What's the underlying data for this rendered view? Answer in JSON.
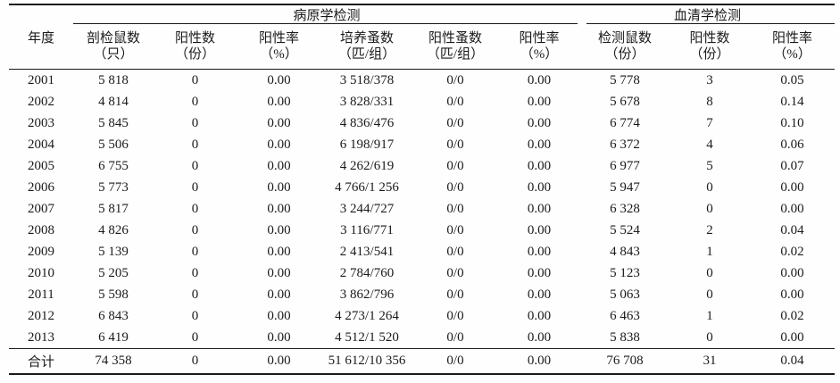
{
  "colors": {
    "background": "#ffffff",
    "rule_line": "#1a1a1a",
    "text": "#1a1a1a"
  },
  "table": {
    "year_header": "年度",
    "groups": [
      {
        "label": "病原学检测"
      },
      {
        "label": "血清学检测"
      }
    ],
    "columns": [
      {
        "name": "剖检鼠数",
        "unit": "（只）"
      },
      {
        "name": "阳性数",
        "unit": "（份）"
      },
      {
        "name": "阳性率",
        "unit": "（%）"
      },
      {
        "name": "培养蚤数",
        "unit": "（匹/组）"
      },
      {
        "name": "阳性蚤数",
        "unit": "（匹/组）"
      },
      {
        "name": "阳性率",
        "unit": "（%）"
      },
      {
        "name": "检测鼠数",
        "unit": "（份）"
      },
      {
        "name": "阳性数",
        "unit": "（份）"
      },
      {
        "name": "阳性率",
        "unit": "（%）"
      }
    ],
    "rows": [
      [
        "2001",
        "5 818",
        "0",
        "0.00",
        "3 518/378",
        "0/0",
        "0.00",
        "5 778",
        "3",
        "0.05"
      ],
      [
        "2002",
        "4 814",
        "0",
        "0.00",
        "3 828/331",
        "0/0",
        "0.00",
        "5 678",
        "8",
        "0.14"
      ],
      [
        "2003",
        "5 845",
        "0",
        "0.00",
        "4 836/476",
        "0/0",
        "0.00",
        "6 774",
        "7",
        "0.10"
      ],
      [
        "2004",
        "5 506",
        "0",
        "0.00",
        "6 198/917",
        "0/0",
        "0.00",
        "6 372",
        "4",
        "0.06"
      ],
      [
        "2005",
        "6 755",
        "0",
        "0.00",
        "4 262/619",
        "0/0",
        "0.00",
        "6 977",
        "5",
        "0.07"
      ],
      [
        "2006",
        "5 773",
        "0",
        "0.00",
        "4 766/1 256",
        "0/0",
        "0.00",
        "5 947",
        "0",
        "0.00"
      ],
      [
        "2007",
        "5 817",
        "0",
        "0.00",
        "3 244/727",
        "0/0",
        "0.00",
        "6 328",
        "0",
        "0.00"
      ],
      [
        "2008",
        "4 826",
        "0",
        "0.00",
        "3 116/771",
        "0/0",
        "0.00",
        "5 524",
        "2",
        "0.04"
      ],
      [
        "2009",
        "5 139",
        "0",
        "0.00",
        "2 413/541",
        "0/0",
        "0.00",
        "4 843",
        "1",
        "0.02"
      ],
      [
        "2010",
        "5 205",
        "0",
        "0.00",
        "2 784/760",
        "0/0",
        "0.00",
        "5 123",
        "0",
        "0.00"
      ],
      [
        "2011",
        "5 598",
        "0",
        "0.00",
        "3 862/796",
        "0/0",
        "0.00",
        "5 063",
        "0",
        "0.00"
      ],
      [
        "2012",
        "6 843",
        "0",
        "0.00",
        "4 273/1 264",
        "0/0",
        "0.00",
        "6 463",
        "1",
        "0.02"
      ],
      [
        "2013",
        "6 419",
        "0",
        "0.00",
        "4 512/1 520",
        "0/0",
        "0.00",
        "5 838",
        "0",
        "0.00"
      ]
    ],
    "total_row": [
      "合计",
      "74 358",
      "0",
      "0.00",
      "51 612/10 356",
      "0/0",
      "0.00",
      "76 708",
      "31",
      "0.04"
    ]
  }
}
